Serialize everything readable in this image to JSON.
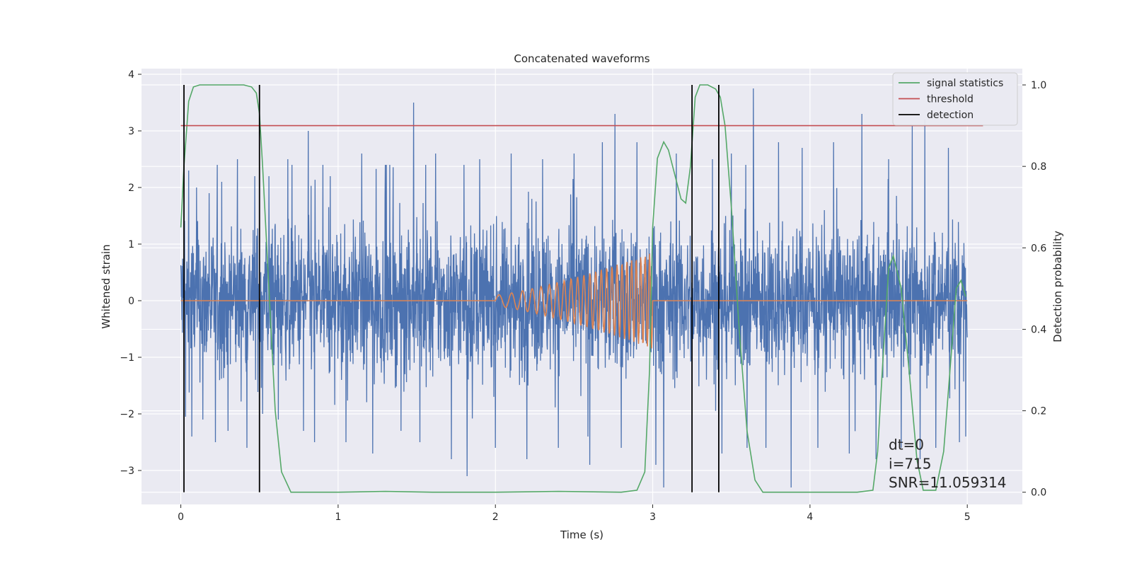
{
  "chart_data": {
    "type": "line",
    "title": "Concatenated waveforms",
    "xlabel": "Time (s)",
    "ylabel": "Whitened strain",
    "y2label": "Detection probability",
    "xlim": [
      -0.25,
      5.35
    ],
    "ylim": [
      -3.6,
      4.1
    ],
    "y2lim": [
      -0.03,
      1.04
    ],
    "xticks": [
      0,
      1,
      2,
      3,
      4,
      5
    ],
    "yticks": [
      -3,
      -2,
      -1,
      0,
      1,
      2,
      3,
      4
    ],
    "yticklabels": [
      "−3",
      "−2",
      "−1",
      "0",
      "1",
      "2",
      "3",
      "4"
    ],
    "y2ticks": [
      0.0,
      0.2,
      0.4,
      0.6,
      0.8,
      1.0
    ],
    "y2ticklabels": [
      "0.0",
      "0.2",
      "0.4",
      "0.6",
      "0.8",
      "1.0"
    ],
    "grid": true,
    "legend_position": "top-right",
    "background": "#eaeaf2",
    "noise": {
      "axis": "left",
      "color": "#4c72b0",
      "x_range": [
        0,
        5
      ],
      "typical_amplitude": 1.0,
      "spike_points": [
        [
          0.03,
          -2.05
        ],
        [
          0.05,
          2.3
        ],
        [
          0.07,
          -2.4
        ],
        [
          0.1,
          2.0
        ],
        [
          0.14,
          -2.1
        ],
        [
          0.18,
          1.9
        ],
        [
          0.22,
          -2.5
        ],
        [
          0.26,
          2.1
        ],
        [
          0.3,
          -2.3
        ],
        [
          0.36,
          2.5
        ],
        [
          0.42,
          -2.6
        ],
        [
          0.47,
          2.2
        ],
        [
          0.52,
          -2.0
        ],
        [
          0.56,
          2.2
        ],
        [
          0.62,
          -2.1
        ],
        [
          0.68,
          2.5
        ],
        [
          0.78,
          -2.3
        ],
        [
          0.81,
          3.0
        ],
        [
          0.85,
          -2.5
        ],
        [
          0.95,
          2.2
        ],
        [
          1.05,
          -2.5
        ],
        [
          1.15,
          2.6
        ],
        [
          1.22,
          -2.7
        ],
        [
          1.3,
          2.4
        ],
        [
          1.4,
          -2.3
        ],
        [
          1.48,
          3.5
        ],
        [
          1.52,
          -2.5
        ],
        [
          1.62,
          2.6
        ],
        [
          1.72,
          -2.8
        ],
        [
          1.8,
          2.4
        ],
        [
          1.82,
          -3.1
        ],
        [
          1.9,
          2.5
        ],
        [
          2.0,
          -2.6
        ],
        [
          2.1,
          2.6
        ],
        [
          2.2,
          -2.8
        ],
        [
          2.3,
          2.5
        ],
        [
          2.4,
          -2.6
        ],
        [
          2.5,
          2.6
        ],
        [
          2.6,
          -2.9
        ],
        [
          2.68,
          2.8
        ],
        [
          2.76,
          3.3
        ],
        [
          2.8,
          -2.6
        ],
        [
          2.9,
          2.8
        ],
        [
          3.02,
          -2.9
        ],
        [
          3.07,
          -3.3
        ],
        [
          3.15,
          2.6
        ],
        [
          3.25,
          -2.8
        ],
        [
          3.38,
          2.5
        ],
        [
          3.44,
          -2.7
        ],
        [
          3.5,
          2.6
        ],
        [
          3.6,
          -2.6
        ],
        [
          3.64,
          3.75
        ],
        [
          3.72,
          -2.6
        ],
        [
          3.8,
          2.8
        ],
        [
          3.88,
          -3.3
        ],
        [
          3.95,
          2.7
        ],
        [
          4.05,
          -2.6
        ],
        [
          4.15,
          2.8
        ],
        [
          4.25,
          -2.7
        ],
        [
          4.33,
          3.3
        ],
        [
          4.42,
          -2.8
        ],
        [
          4.5,
          2.5
        ],
        [
          4.58,
          -2.6
        ],
        [
          4.65,
          3.1
        ],
        [
          4.7,
          -2.8
        ],
        [
          4.73,
          3.2
        ],
        [
          4.8,
          -2.6
        ],
        [
          4.88,
          2.7
        ],
        [
          4.95,
          -2.5
        ],
        [
          4.99,
          -2.4
        ]
      ]
    },
    "chirp": {
      "axis": "left",
      "color": "#dd8452",
      "baseline": 0,
      "x_start": 2.0,
      "x_end": 3.0,
      "amplitude_start": 0.1,
      "amplitude_end": 0.85,
      "cycles": 24
    },
    "series": [
      {
        "name": "signal statistics",
        "axis": "right",
        "color": "#55a868",
        "x": [
          0.0,
          0.02,
          0.05,
          0.08,
          0.12,
          0.2,
          0.3,
          0.4,
          0.45,
          0.48,
          0.5,
          0.52,
          0.56,
          0.6,
          0.64,
          0.7,
          0.8,
          1.0,
          1.3,
          1.6,
          2.0,
          2.4,
          2.8,
          2.9,
          2.95,
          2.98,
          3.0,
          3.03,
          3.07,
          3.1,
          3.14,
          3.18,
          3.21,
          3.24,
          3.27,
          3.3,
          3.35,
          3.4,
          3.43,
          3.46,
          3.5,
          3.55,
          3.6,
          3.65,
          3.7,
          3.8,
          4.0,
          4.3,
          4.4,
          4.43,
          4.46,
          4.5,
          4.53,
          4.58,
          4.63,
          4.68,
          4.72,
          4.8,
          4.85,
          4.9,
          4.93,
          4.96,
          4.99
        ],
        "y": [
          0.65,
          0.8,
          0.96,
          0.995,
          1.0,
          1.0,
          1.0,
          1.0,
          0.995,
          0.98,
          0.93,
          0.8,
          0.5,
          0.2,
          0.05,
          0.0,
          0.0,
          0.0,
          0.002,
          0.0,
          0.0,
          0.002,
          0.0,
          0.005,
          0.05,
          0.3,
          0.65,
          0.82,
          0.86,
          0.84,
          0.78,
          0.72,
          0.71,
          0.8,
          0.97,
          1.0,
          1.0,
          0.99,
          0.97,
          0.9,
          0.7,
          0.4,
          0.15,
          0.03,
          0.0,
          0.0,
          0.0,
          0.0,
          0.005,
          0.1,
          0.3,
          0.55,
          0.58,
          0.5,
          0.3,
          0.08,
          0.005,
          0.005,
          0.1,
          0.35,
          0.5,
          0.52,
          0.48
        ]
      },
      {
        "name": "threshold",
        "axis": "right",
        "color": "#c44e52",
        "x": [
          0.0,
          5.1
        ],
        "y": [
          0.9,
          0.9
        ]
      }
    ],
    "detections": {
      "name": "detection",
      "color": "#000000",
      "x": [
        0.02,
        0.5,
        3.25,
        3.42
      ],
      "y_from": 0.0,
      "y_to": 1.0
    },
    "annotations": [
      {
        "text": "dt=0",
        "x": 4.5,
        "y": 0.105
      },
      {
        "text": "i=715",
        "x": 4.5,
        "y": 0.058
      },
      {
        "text": "SNR=11.059314",
        "x": 4.5,
        "y": 0.012
      }
    ]
  }
}
